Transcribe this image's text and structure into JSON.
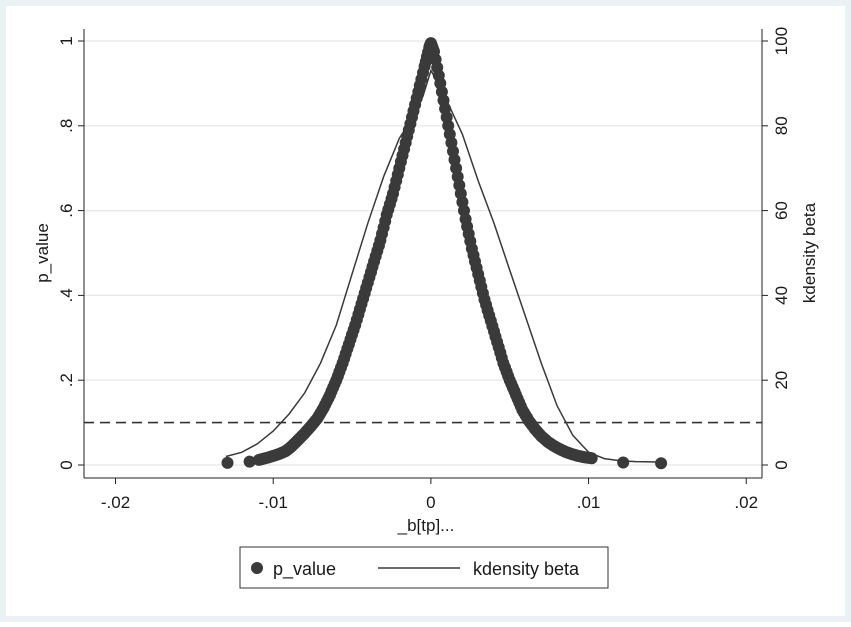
{
  "chart_data": {
    "type": "scatter",
    "xlabel": "_b[tp]...",
    "ylabel_left": "p_value",
    "ylabel_right": "kdensity beta",
    "xlim": [
      -0.022,
      0.021
    ],
    "ylim_left": [
      0,
      1
    ],
    "ylim_right": [
      0,
      100
    ],
    "x_ticks": [
      {
        "value": -0.02,
        "label": "-.02"
      },
      {
        "value": -0.01,
        "label": "-.01"
      },
      {
        "value": 0,
        "label": "0"
      },
      {
        "value": 0.01,
        "label": ".01"
      },
      {
        "value": 0.02,
        "label": ".02"
      }
    ],
    "y_ticks_left": [
      {
        "value": 0,
        "label": "0"
      },
      {
        "value": 0.2,
        "label": ".2"
      },
      {
        "value": 0.4,
        "label": ".4"
      },
      {
        "value": 0.6,
        "label": ".6"
      },
      {
        "value": 0.8,
        "label": ".8"
      },
      {
        "value": 1,
        "label": "1"
      }
    ],
    "y_ticks_right": [
      {
        "value": 0,
        "label": "0"
      },
      {
        "value": 20,
        "label": "20"
      },
      {
        "value": 40,
        "label": "40"
      },
      {
        "value": 60,
        "label": "60"
      },
      {
        "value": 80,
        "label": "80"
      },
      {
        "value": 100,
        "label": "100"
      }
    ],
    "reference_line": {
      "axis": "left",
      "y": 0.1,
      "style": "dashed"
    },
    "grid": true,
    "legend": {
      "placement": "bottom",
      "entries": [
        "p_value",
        "kdensity beta"
      ]
    },
    "colors": {
      "markers": "#3a3a3a",
      "line": "#3a3a3a",
      "grid": "#e6e6e6",
      "frame": "#eaf2f3",
      "reference": "#333333"
    },
    "series": [
      {
        "name": "p_value",
        "kind": "scatter",
        "axis": "left",
        "points": [
          [
            -0.0129,
            0.005
          ],
          [
            -0.0115,
            0.008
          ],
          [
            -0.0109,
            0.012
          ],
          [
            -0.0103,
            0.018
          ],
          [
            -0.0097,
            0.025
          ],
          [
            -0.0092,
            0.033
          ],
          [
            -0.0088,
            0.045
          ],
          [
            -0.0084,
            0.06
          ],
          [
            -0.008,
            0.075
          ],
          [
            -0.0076,
            0.092
          ],
          [
            -0.0072,
            0.11
          ],
          [
            -0.0068,
            0.135
          ],
          [
            -0.0064,
            0.165
          ],
          [
            -0.006,
            0.2
          ],
          [
            -0.0056,
            0.24
          ],
          [
            -0.0052,
            0.285
          ],
          [
            -0.0048,
            0.33
          ],
          [
            -0.0044,
            0.38
          ],
          [
            -0.004,
            0.43
          ],
          [
            -0.0036,
            0.48
          ],
          [
            -0.0032,
            0.53
          ],
          [
            -0.0028,
            0.59
          ],
          [
            -0.0024,
            0.64
          ],
          [
            -0.002,
            0.7
          ],
          [
            -0.0016,
            0.76
          ],
          [
            -0.0012,
            0.82
          ],
          [
            -0.0008,
            0.88
          ],
          [
            -0.0004,
            0.94
          ],
          [
            -0.0001,
            0.985
          ],
          [
            0.0,
            0.995
          ],
          [
            0.0002,
            0.975
          ],
          [
            0.0006,
            0.9
          ],
          [
            0.001,
            0.82
          ],
          [
            0.0014,
            0.74
          ],
          [
            0.0018,
            0.66
          ],
          [
            0.0022,
            0.58
          ],
          [
            0.0026,
            0.51
          ],
          [
            0.003,
            0.45
          ],
          [
            0.0034,
            0.39
          ],
          [
            0.0038,
            0.34
          ],
          [
            0.0042,
            0.29
          ],
          [
            0.0046,
            0.24
          ],
          [
            0.005,
            0.2
          ],
          [
            0.0054,
            0.165
          ],
          [
            0.0058,
            0.13
          ],
          [
            0.0062,
            0.105
          ],
          [
            0.0066,
            0.085
          ],
          [
            0.007,
            0.068
          ],
          [
            0.0074,
            0.055
          ],
          [
            0.0078,
            0.045
          ],
          [
            0.0082,
            0.037
          ],
          [
            0.0086,
            0.03
          ],
          [
            0.009,
            0.025
          ],
          [
            0.0094,
            0.021
          ],
          [
            0.0098,
            0.018
          ],
          [
            0.0102,
            0.016
          ],
          [
            0.0122,
            0.006
          ],
          [
            0.0146,
            0.004
          ]
        ]
      },
      {
        "name": "kdensity beta",
        "kind": "line",
        "axis": "right",
        "points": [
          [
            -0.013,
            2
          ],
          [
            -0.012,
            3
          ],
          [
            -0.011,
            5
          ],
          [
            -0.01,
            8
          ],
          [
            -0.009,
            12
          ],
          [
            -0.008,
            17
          ],
          [
            -0.007,
            24
          ],
          [
            -0.006,
            33
          ],
          [
            -0.005,
            45
          ],
          [
            -0.004,
            57
          ],
          [
            -0.003,
            68
          ],
          [
            -0.002,
            77
          ],
          [
            -0.001,
            83
          ],
          [
            -0.0005,
            87
          ],
          [
            0.0,
            93
          ],
          [
            0.0005,
            90
          ],
          [
            0.001,
            86
          ],
          [
            0.002,
            78
          ],
          [
            0.003,
            67
          ],
          [
            0.004,
            57
          ],
          [
            0.005,
            46
          ],
          [
            0.006,
            35
          ],
          [
            0.007,
            24
          ],
          [
            0.008,
            14
          ],
          [
            0.009,
            7
          ],
          [
            0.01,
            3
          ],
          [
            0.011,
            1.5
          ],
          [
            0.012,
            1
          ],
          [
            0.013,
            0.8
          ],
          [
            0.0145,
            0.7
          ]
        ]
      }
    ]
  }
}
